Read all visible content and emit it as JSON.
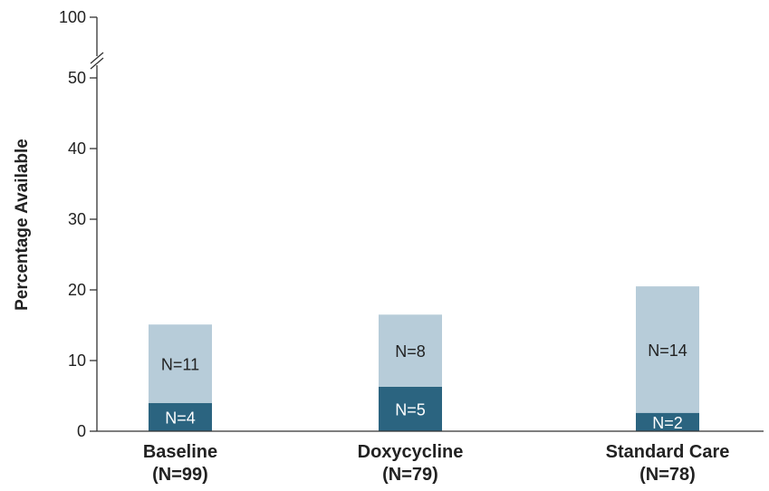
{
  "chart_data": {
    "type": "bar",
    "stacked": true,
    "ylabel": "Percentage Available",
    "ylim": [
      0,
      50
    ],
    "yticks": [
      0,
      10,
      20,
      30,
      40,
      50
    ],
    "axis_break": true,
    "break_tick": 100,
    "categories": [
      {
        "name": "Baseline",
        "n_label": "(N=99)"
      },
      {
        "name": "Doxycycline",
        "n_label": "(N=79)"
      },
      {
        "name": "Standard Care",
        "n_label": "(N=78)"
      }
    ],
    "series": [
      {
        "values": [
          4.0,
          6.3,
          2.6
        ],
        "labels": [
          "N=4",
          "N=5",
          "N=2"
        ],
        "color": "#2b6480",
        "text_color": "#ffffff"
      },
      {
        "values": [
          11.1,
          10.2,
          17.9
        ],
        "labels": [
          "N=11",
          "N=8",
          "N=14"
        ],
        "color": "#b7ccd9",
        "text_color": "#222222"
      }
    ],
    "grid": false
  }
}
